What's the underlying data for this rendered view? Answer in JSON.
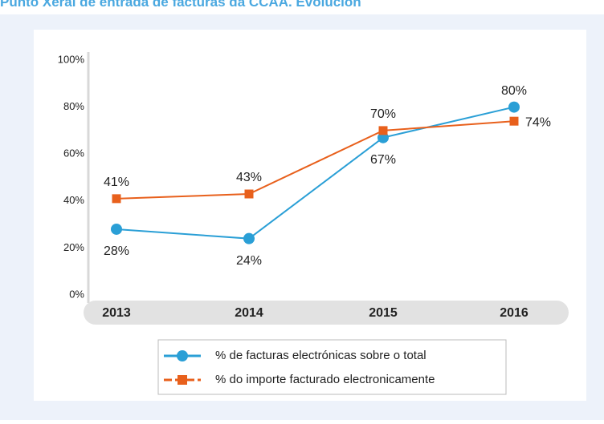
{
  "chart_data": {
    "type": "line",
    "title": "Punto Xeral de entrada de facturas da CCAA. Evolución",
    "categories": [
      "2013",
      "2014",
      "2015",
      "2016"
    ],
    "series": [
      {
        "name": "% de facturas electrónicas sobre o total",
        "color": "#2a9fd6",
        "values": [
          28,
          24,
          67,
          80
        ],
        "value_labels": [
          "28%",
          "24%",
          "67%",
          "80%"
        ],
        "marker": "circle"
      },
      {
        "name": "% do importe facturado electronicamente",
        "color": "#e8601c",
        "values": [
          41,
          43,
          70,
          74
        ],
        "value_labels": [
          "41%",
          "43%",
          "70%",
          "74%"
        ],
        "marker": "square"
      }
    ],
    "ylim": [
      0,
      100
    ],
    "yticks": [
      {
        "value": 0,
        "label": "0%"
      },
      {
        "value": 20,
        "label": "20%"
      },
      {
        "value": 40,
        "label": "40%"
      },
      {
        "value": 60,
        "label": "60%"
      },
      {
        "value": 80,
        "label": "80%"
      },
      {
        "value": 100,
        "label": "100%"
      }
    ],
    "legend": "bottom"
  }
}
